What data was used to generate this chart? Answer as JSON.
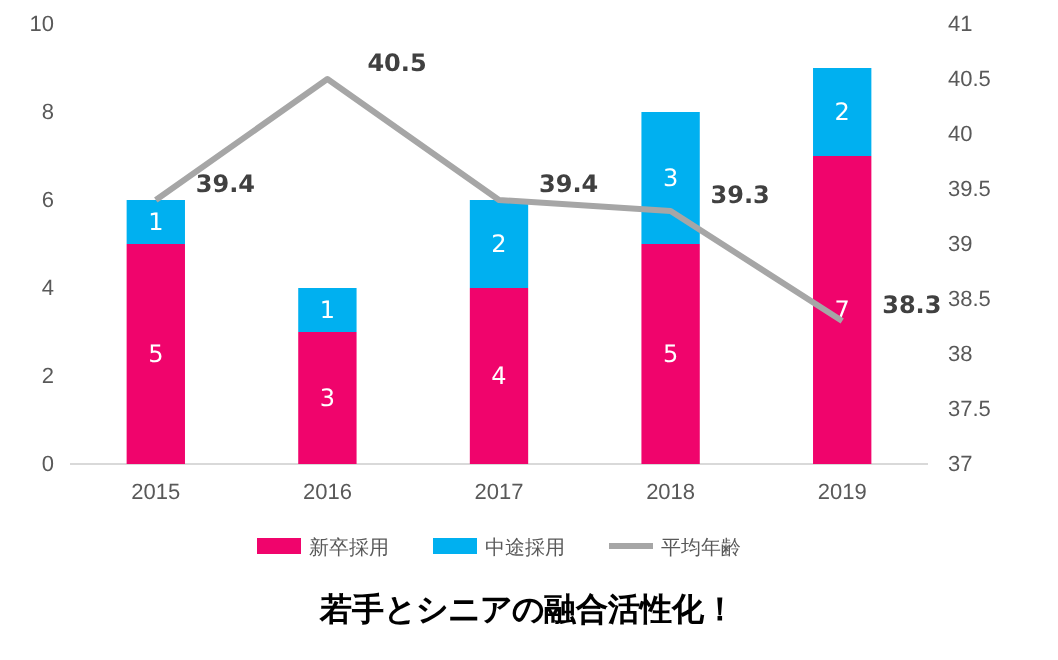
{
  "chart_data": {
    "type": "bar",
    "title": "若手とシニアの融合活性化！",
    "categories": [
      "2015",
      "2016",
      "2017",
      "2018",
      "2019"
    ],
    "stacked": true,
    "data_labels": true,
    "legend": "bottom",
    "grid": false,
    "series": [
      {
        "name": "新卒採用",
        "color": "#f0046c",
        "values": [
          5,
          3,
          4,
          5,
          7
        ]
      },
      {
        "name": "中途採用",
        "color": "#00b0f0",
        "values": [
          1,
          1,
          2,
          3,
          2
        ]
      },
      {
        "name": "平均年齢",
        "type": "line",
        "axis": "y2",
        "color": "#a6a6a6",
        "values": [
          39.4,
          40.5,
          39.4,
          39.3,
          38.3
        ]
      }
    ],
    "ylim": [
      0,
      10
    ],
    "yticks": [
      0,
      2,
      4,
      6,
      8,
      10
    ],
    "y2lim": [
      37,
      41
    ],
    "y2ticks": [
      37,
      37.5,
      38,
      38.5,
      39,
      39.5,
      40,
      40.5,
      41
    ]
  }
}
